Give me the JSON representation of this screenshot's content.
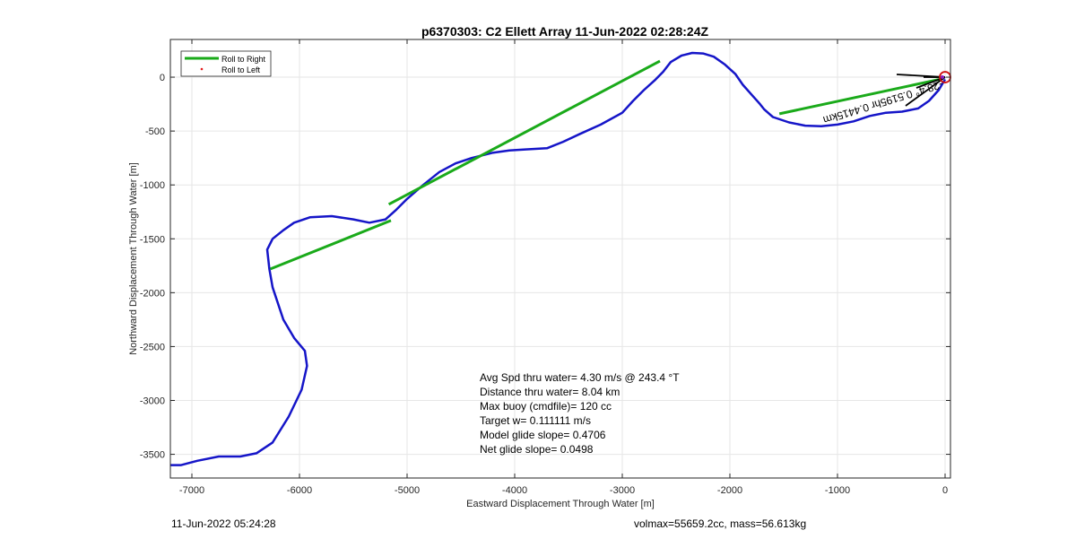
{
  "chart_data": {
    "type": "line",
    "title": "p6370303: C2 Ellett Array 11-Jun-2022 02:28:24Z",
    "xlabel": "Eastward Displacement Through Water [m]",
    "ylabel": "Northward Displacement Through Water [m]",
    "xlim": [
      -7200,
      50
    ],
    "ylim": [
      -3720,
      350
    ],
    "xticks": [
      -7000,
      -6000,
      -5000,
      -4000,
      -3000,
      -2000,
      -1000,
      0
    ],
    "yticks": [
      0,
      -500,
      -1000,
      -1500,
      -2000,
      -2500,
      -3000,
      -3500
    ],
    "grid": true,
    "legend_position": "top-left",
    "legend": [
      {
        "label": "Roll to Right",
        "color": "#1aaa1a",
        "style": "line"
      },
      {
        "label": "Roll to Left",
        "color": "#e41a1a",
        "style": "dot"
      }
    ],
    "series": [
      {
        "color": "#1515c8",
        "x": [
          0,
          -60,
          -150,
          -250,
          -400,
          -550,
          -700,
          -850,
          -1000,
          -1150,
          -1300,
          -1450,
          -1600,
          -1680,
          -1720,
          -1800,
          -1880,
          -1950,
          -2050,
          -2150,
          -2250,
          -2350,
          -2450,
          -2550,
          -2620,
          -2700,
          -2800,
          -2900,
          -3000,
          -3200,
          -3400,
          -3550,
          -3700,
          -3900,
          -4050,
          -4200,
          -4400,
          -4550,
          -4700,
          -4850,
          -5000,
          -5100,
          -5200,
          -5350,
          -5500,
          -5700,
          -5900,
          -6050,
          -6150,
          -6250,
          -6300,
          -6280,
          -6250,
          -6150,
          -6050,
          -5950,
          -5930,
          -5980,
          -6100,
          -6250,
          -6400,
          -6550,
          -6750,
          -6950,
          -7100,
          -7200
        ],
        "y": [
          -20,
          -120,
          -220,
          -290,
          -320,
          -330,
          -360,
          -410,
          -440,
          -455,
          -450,
          -420,
          -370,
          -300,
          -250,
          -160,
          -70,
          30,
          120,
          190,
          220,
          225,
          200,
          140,
          50,
          -30,
          -120,
          -220,
          -330,
          -440,
          -530,
          -600,
          -660,
          -670,
          -680,
          -700,
          -750,
          -800,
          -880,
          -1000,
          -1130,
          -1230,
          -1320,
          -1350,
          -1320,
          -1290,
          -1300,
          -1350,
          -1420,
          -1500,
          -1600,
          -1780,
          -1950,
          -2250,
          -2420,
          -2540,
          -2680,
          -2900,
          -3150,
          -3390,
          -3490,
          -3520,
          -3520,
          -3560,
          -3600,
          -3600
        ]
      },
      {
        "color": "#1aaa1a",
        "segments": [
          {
            "x": [
              -6270,
              -5150
            ],
            "y": [
              -1780,
              -1330
            ]
          },
          {
            "x": [
              -5170,
              -2650
            ],
            "y": [
              -1180,
              150
            ]
          },
          {
            "x": [
              -1540,
              -50
            ],
            "y": [
              -340,
              -20
            ]
          }
        ]
      }
    ],
    "origin_marker": {
      "x": 0,
      "y": 0,
      "color": "#d01010"
    },
    "heading_label": "-28.4° 0.5195hr 0.4415km"
  },
  "annotation": [
    "Avg Spd thru water=  4.30 m/s @ 243.4 °T",
    "Distance thru water=  8.04 km",
    "Max buoy (cmdfile)= 120 cc",
    "Target w= 0.111111 m/s",
    "Model glide slope= 0.4706",
    "Net glide slope= 0.0498"
  ],
  "footer": {
    "left": "11-Jun-2022 05:24:28",
    "right": "volmax=55659.2cc, mass=56.613kg"
  }
}
